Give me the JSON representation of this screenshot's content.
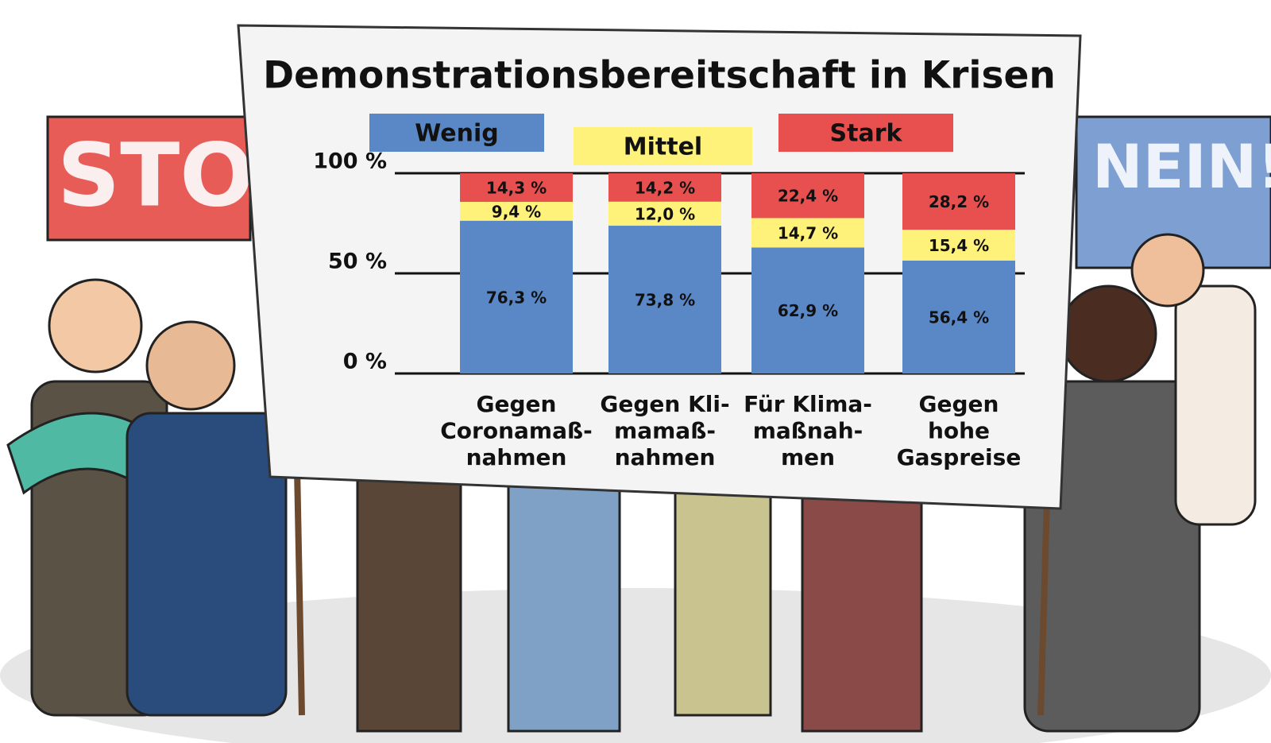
{
  "signs": [
    "STO",
    "NEIN!"
  ],
  "chart_data": {
    "type": "stacked_bar",
    "title": "Demonstrationsbereitschaft in Krisen",
    "categories": [
      "Gegen\nCoronamaß-\nnahmen",
      "Gegen Kli-\nmamaß-\nnahmen",
      "Für Klima-\nmaßnah-\nmen",
      "Gegen\nhohe\nGaspreise"
    ],
    "series": [
      {
        "name": "Wenig",
        "color": "#5a88c6",
        "values": [
          76.3,
          73.8,
          62.9,
          56.4
        ],
        "value_labels": [
          "76,3 %",
          "73,8 %",
          "62,9 %",
          "56,4 %"
        ]
      },
      {
        "name": "Mittel",
        "color": "#fff27a",
        "values": [
          9.4,
          12.0,
          14.7,
          15.4
        ],
        "value_labels": [
          "9,4 %",
          "12,0 %",
          "14,7 %",
          "15,4 %"
        ]
      },
      {
        "name": "Stark",
        "color": "#e8504f",
        "values": [
          14.3,
          14.2,
          22.4,
          28.2
        ],
        "value_labels": [
          "14,3 %",
          "14,2 %",
          "22,4 %",
          "28,2 %"
        ]
      }
    ],
    "ylim": [
      0,
      100
    ],
    "yticks": [
      {
        "value": 0,
        "label": "0 %"
      },
      {
        "value": 50,
        "label": "50 %"
      },
      {
        "value": 100,
        "label": "100 %"
      }
    ],
    "grid": true
  }
}
